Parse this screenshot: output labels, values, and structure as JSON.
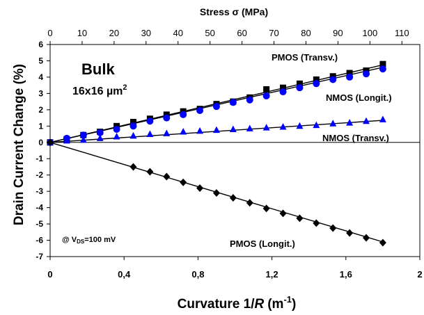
{
  "chart_data": {
    "type": "line",
    "title": "",
    "xlabel_prefix": "Curvature 1/",
    "xlabel_italic": "R",
    "xlabel_unit_base": "(m",
    "xlabel_unit_sup": "-1",
    "xlabel_unit_close": ")",
    "ylabel": "Drain Current Change (%)",
    "top_axis_label": "Stress σ (MPa)",
    "xlim": [
      0,
      2
    ],
    "ylim": [
      -7,
      6
    ],
    "top_xlim": [
      0,
      115.6
    ],
    "x_ticks": [
      "0",
      "0,4",
      "0,8",
      "1,2",
      "1,6",
      "2"
    ],
    "x_tick_values": [
      0,
      0.4,
      0.8,
      1.2,
      1.6,
      2.0
    ],
    "y_ticks": [
      "6",
      "5",
      "4",
      "3",
      "2",
      "1",
      "0",
      "-1",
      "-2",
      "-3",
      "-4",
      "-5",
      "-6",
      "-7"
    ],
    "y_tick_values": [
      6,
      5,
      4,
      3,
      2,
      1,
      0,
      -1,
      -2,
      -3,
      -4,
      -5,
      -6,
      -7
    ],
    "top_ticks": [
      "0",
      "10",
      "20",
      "30",
      "40",
      "50",
      "60",
      "70",
      "80",
      "90",
      "100",
      "110"
    ],
    "top_tick_values": [
      0,
      10,
      20,
      30,
      40,
      50,
      60,
      70,
      80,
      90,
      100,
      110
    ],
    "annotations": {
      "bulk": "Bulk",
      "size_base": "16x16 µm",
      "size_sup": "2",
      "vds_prefix": "@ V",
      "vds_sub": "DS",
      "vds_suffix": "=100 mV"
    },
    "series": [
      {
        "name": "PMOS (Transv.)",
        "marker": "square",
        "color": "#000000",
        "x": [
          0,
          0.09,
          0.18,
          0.27,
          0.36,
          0.45,
          0.54,
          0.63,
          0.72,
          0.81,
          0.9,
          0.99,
          1.08,
          1.17,
          1.26,
          1.35,
          1.44,
          1.53,
          1.62,
          1.71,
          1.8
        ],
        "y": [
          0,
          0.2,
          0.45,
          0.65,
          1.0,
          1.25,
          1.45,
          1.7,
          1.9,
          2.05,
          2.35,
          2.5,
          2.75,
          3.25,
          3.35,
          3.6,
          3.85,
          4.05,
          4.25,
          4.4,
          4.8
        ],
        "fit": [
          [
            0,
            0
          ],
          [
            1.8,
            4.75
          ]
        ]
      },
      {
        "name": "NMOS (Longit.)",
        "marker": "circle",
        "color": "#0000ff",
        "x": [
          0,
          0.09,
          0.18,
          0.27,
          0.36,
          0.45,
          0.54,
          0.63,
          0.72,
          0.81,
          0.9,
          0.99,
          1.08,
          1.17,
          1.26,
          1.35,
          1.44,
          1.53,
          1.62,
          1.71,
          1.8
        ],
        "y": [
          0,
          0.25,
          0.45,
          0.6,
          0.8,
          1.0,
          1.3,
          1.5,
          1.7,
          1.95,
          2.2,
          2.45,
          2.6,
          2.85,
          3.1,
          3.35,
          3.6,
          3.85,
          4.0,
          4.2,
          4.5
        ],
        "fit": [
          [
            0,
            0
          ],
          [
            1.8,
            4.6
          ]
        ]
      },
      {
        "name": "NMOS (Transv.)",
        "marker": "triangle",
        "color": "#0000ff",
        "x": [
          0,
          0.09,
          0.18,
          0.27,
          0.36,
          0.45,
          0.54,
          0.63,
          0.72,
          0.81,
          0.9,
          0.99,
          1.08,
          1.17,
          1.26,
          1.35,
          1.44,
          1.53,
          1.62,
          1.71,
          1.8
        ],
        "y": [
          0,
          0.1,
          0.15,
          0.25,
          0.35,
          0.4,
          0.5,
          0.55,
          0.65,
          0.7,
          0.75,
          0.8,
          0.85,
          0.9,
          0.95,
          1.0,
          1.05,
          1.15,
          1.2,
          1.3,
          1.4
        ],
        "fit": [
          [
            0,
            0
          ],
          [
            1.8,
            1.35
          ]
        ]
      },
      {
        "name": "PMOS (Longit.)",
        "marker": "diamond",
        "color": "#000000",
        "x": [
          0,
          0.45,
          0.54,
          0.63,
          0.72,
          0.81,
          0.9,
          0.99,
          1.08,
          1.17,
          1.26,
          1.35,
          1.44,
          1.53,
          1.62,
          1.71,
          1.8
        ],
        "y": [
          0,
          -1.5,
          -1.8,
          -2.1,
          -2.45,
          -2.8,
          -3.1,
          -3.4,
          -3.7,
          -4.05,
          -4.35,
          -4.65,
          -4.95,
          -5.25,
          -5.55,
          -5.85,
          -6.15
        ],
        "fit": [
          [
            0,
            0
          ],
          [
            1.8,
            -6.1
          ]
        ]
      }
    ],
    "series_label_positions": [
      "top-right",
      "right",
      "right-middle",
      "bottom-right"
    ],
    "grid": false,
    "legend": "inline labels"
  }
}
